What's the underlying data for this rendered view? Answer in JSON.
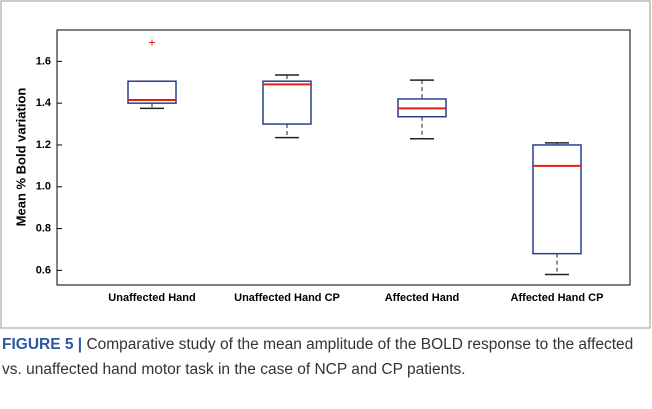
{
  "chart_data": {
    "type": "box",
    "ylabel": "Mean % Bold variation",
    "categories": [
      "Unaffected Hand",
      "Unaffected Hand CP",
      "Affected Hand",
      "Affected Hand CP"
    ],
    "boxes": [
      {
        "min": 1.375,
        "q1": 1.4,
        "median": 1.415,
        "q3": 1.505,
        "max": 1.505,
        "outliers": [
          1.69
        ]
      },
      {
        "min": 1.235,
        "q1": 1.3,
        "median": 1.49,
        "q3": 1.505,
        "max": 1.535,
        "outliers": []
      },
      {
        "min": 1.23,
        "q1": 1.335,
        "median": 1.375,
        "q3": 1.42,
        "max": 1.51,
        "outliers": []
      },
      {
        "min": 0.58,
        "q1": 0.68,
        "median": 1.1,
        "q3": 1.2,
        "max": 1.21,
        "outliers": []
      }
    ],
    "box_color": "#2b3f8c",
    "median_color": "#e3201b",
    "whisker_color": "#222222",
    "outlier_color": "#e3201b",
    "ylim": [
      0.53,
      1.75
    ],
    "yticks": [
      0.6,
      0.8,
      {
        "value": 1,
        "label": "1.0"
      },
      1.2,
      1.4,
      1.6
    ]
  },
  "caption": {
    "label": "FIGURE 5 |",
    "text": "Comparative study of the mean amplitude of the BOLD response to the affected vs. unaffected hand motor task in the case of NCP and CP patients."
  }
}
